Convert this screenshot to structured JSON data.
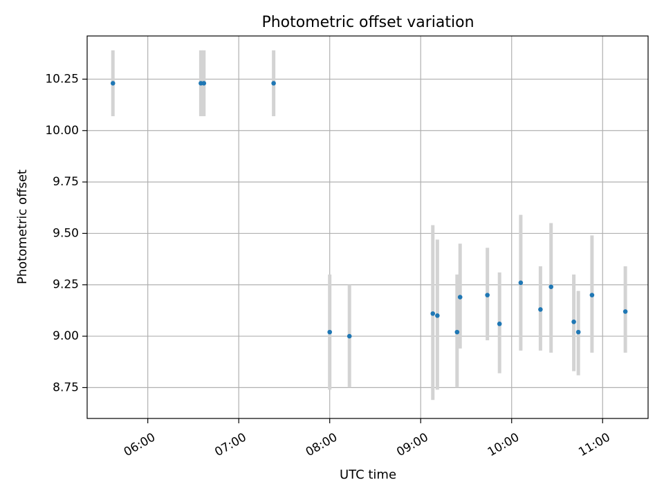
{
  "chart_data": {
    "type": "scatter",
    "title": "Photometric offset variation",
    "xlabel": "UTC time",
    "ylabel": "Photometric offset",
    "grid": true,
    "xlim": [
      "05:20",
      "11:30"
    ],
    "ylim": [
      8.6,
      10.46
    ],
    "x_ticks": [
      "06:00",
      "07:00",
      "08:00",
      "09:00",
      "10:00",
      "11:00"
    ],
    "y_ticks": [
      "8.75",
      "9.00",
      "9.25",
      "9.50",
      "9.75",
      "10.00",
      "10.25"
    ],
    "colors": {
      "point": "#1f77b4",
      "errorbar": "#d3d3d3",
      "grid": "#b0b0b0"
    },
    "points": [
      {
        "x": "05:37",
        "y": 10.23,
        "err_low": 10.07,
        "err_high": 10.39
      },
      {
        "x": "06:35",
        "y": 10.23,
        "err_low": 10.07,
        "err_high": 10.39
      },
      {
        "x": "06:37",
        "y": 10.23,
        "err_low": 10.07,
        "err_high": 10.39
      },
      {
        "x": "07:23",
        "y": 10.23,
        "err_low": 10.07,
        "err_high": 10.39
      },
      {
        "x": "08:00",
        "y": 9.02,
        "err_low": 8.74,
        "err_high": 9.3
      },
      {
        "x": "08:13",
        "y": 9.0,
        "err_low": 8.75,
        "err_high": 9.25
      },
      {
        "x": "09:08",
        "y": 9.11,
        "err_low": 8.69,
        "err_high": 9.54
      },
      {
        "x": "09:11",
        "y": 9.1,
        "err_low": 8.74,
        "err_high": 9.47
      },
      {
        "x": "09:24",
        "y": 9.02,
        "err_low": 8.75,
        "err_high": 9.3
      },
      {
        "x": "09:26",
        "y": 9.19,
        "err_low": 8.94,
        "err_high": 9.45
      },
      {
        "x": "09:44",
        "y": 9.2,
        "err_low": 8.98,
        "err_high": 9.43
      },
      {
        "x": "09:52",
        "y": 9.06,
        "err_low": 8.82,
        "err_high": 9.31
      },
      {
        "x": "10:06",
        "y": 9.26,
        "err_low": 8.93,
        "err_high": 9.59
      },
      {
        "x": "10:19",
        "y": 9.13,
        "err_low": 8.93,
        "err_high": 9.34
      },
      {
        "x": "10:26",
        "y": 9.24,
        "err_low": 8.92,
        "err_high": 9.55
      },
      {
        "x": "10:41",
        "y": 9.07,
        "err_low": 8.83,
        "err_high": 9.3
      },
      {
        "x": "10:44",
        "y": 9.02,
        "err_low": 8.81,
        "err_high": 9.22
      },
      {
        "x": "10:53",
        "y": 9.2,
        "err_low": 8.92,
        "err_high": 9.49
      },
      {
        "x": "11:15",
        "y": 9.12,
        "err_low": 8.92,
        "err_high": 9.34
      }
    ]
  }
}
